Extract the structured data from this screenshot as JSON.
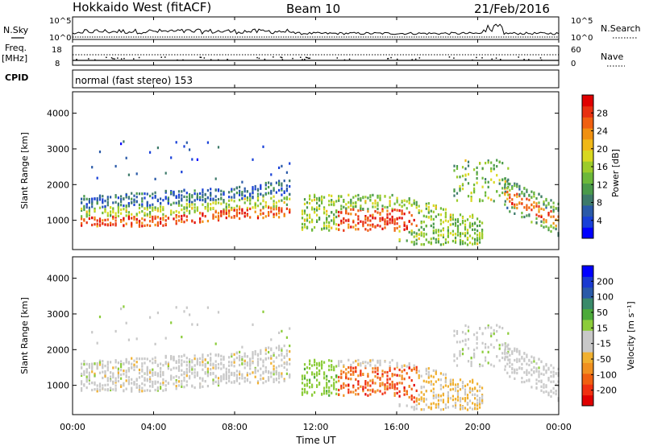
{
  "header": {
    "radar": "Hokkaido West (fitACF)",
    "beam": "Beam 10",
    "date": "21/Feb/2016"
  },
  "panels": {
    "nsky_label": "N.Sky",
    "nsky_ticks": [
      "10^5",
      "10^0"
    ],
    "nsearch_label": "N.Search",
    "nsearch_ticks": [
      "10^5",
      "10^0"
    ],
    "freq_label": "Freq.",
    "freq_unit": "[MHz]",
    "freq_ticks": [
      "18",
      "8"
    ],
    "nave_label": "Nave",
    "nave_ticks": [
      "60",
      "0"
    ],
    "cpid_label": "CPID",
    "cpid_text": "normal (fast stereo) 153"
  },
  "colors": {
    "power": [
      "#0000ff",
      "#1840d8",
      "#2a5aa8",
      "#3d7a6a",
      "#4a9a4a",
      "#6cb83a",
      "#9ccc2a",
      "#d8d820",
      "#f0b818",
      "#f09010",
      "#f06010",
      "#e83010",
      "#e00000"
    ],
    "velocity": [
      "#e00000",
      "#f03010",
      "#f06010",
      "#f09020",
      "#f0b030",
      "#c8c8c8",
      "#c8c8c8",
      "#8ccc3a",
      "#4caa3a",
      "#3a8a6a",
      "#2a5aa8",
      "#1a3ad0",
      "#0000ff"
    ]
  },
  "chart_data": [
    {
      "type": "heatmap",
      "name": "power",
      "ylabel": "Slant Range [km]",
      "y_ticks": [
        1000,
        2000,
        3000,
        4000
      ],
      "ylim": [
        180,
        4600
      ],
      "xlim": [
        0,
        24
      ],
      "colorbar_label": "Power [dB]",
      "colorbar_ticks": [
        "4",
        "8",
        "12",
        "16",
        "20",
        "24",
        "28"
      ],
      "clim": [
        0,
        32
      ]
    },
    {
      "type": "heatmap",
      "name": "velocity",
      "ylabel": "Slant Range [km]",
      "y_ticks": [
        1000,
        2000,
        3000,
        4000
      ],
      "ylim": [
        180,
        4600
      ],
      "xlim": [
        0,
        24
      ],
      "colorbar_label": "Velocity [m s⁻¹]",
      "colorbar_ticks": [
        "-200",
        "-100",
        "-50",
        "-15",
        "15",
        "50",
        "100",
        "200"
      ],
      "clim": [
        -250,
        250
      ]
    }
  ],
  "xaxis": {
    "ticks": [
      "00:00",
      "04:00",
      "08:00",
      "12:00",
      "16:00",
      "20:00",
      "00:00"
    ],
    "label": "Time UT"
  }
}
